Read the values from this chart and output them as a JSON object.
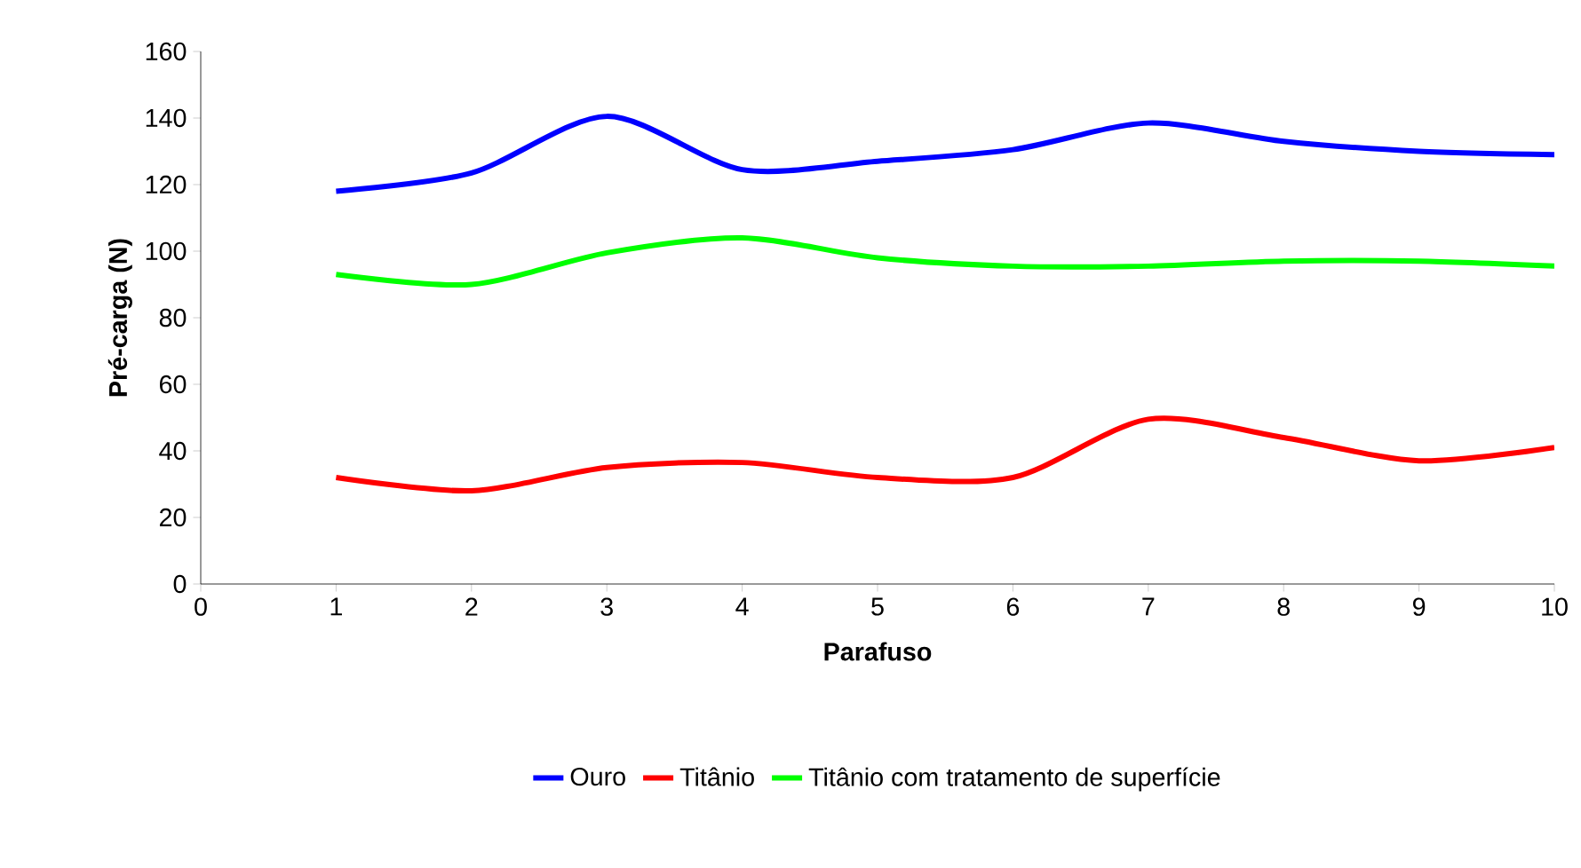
{
  "chart_data": {
    "type": "line",
    "xlabel": "Parafuso",
    "ylabel": "Pré-carga (N)",
    "x": [
      1,
      2,
      3,
      4,
      5,
      6,
      7,
      8,
      9,
      10
    ],
    "series": [
      {
        "name": "Ouro",
        "color": "#0000ff",
        "values": [
          118,
          123.5,
          140.5,
          124.5,
          127,
          130.5,
          138.5,
          133,
          130,
          129
        ]
      },
      {
        "name": "Titânio",
        "color": "#ff0000",
        "values": [
          32,
          28,
          35,
          36.5,
          32,
          32,
          49.5,
          44,
          37,
          41
        ]
      },
      {
        "name": "Titânio com tratamento de superfície",
        "color": "#00ff00",
        "values": [
          93,
          90,
          99.5,
          104,
          98,
          95.5,
          95.5,
          97,
          97,
          95.5
        ]
      }
    ],
    "xlim": [
      0,
      10
    ],
    "ylim": [
      0,
      160
    ],
    "xticks": [
      0,
      1,
      2,
      3,
      4,
      5,
      6,
      7,
      8,
      9,
      10
    ],
    "yticks": [
      0,
      20,
      40,
      60,
      80,
      100,
      120,
      140,
      160
    ],
    "grid": false,
    "legend": "bottom",
    "marker": "none",
    "line_style": "solid"
  }
}
